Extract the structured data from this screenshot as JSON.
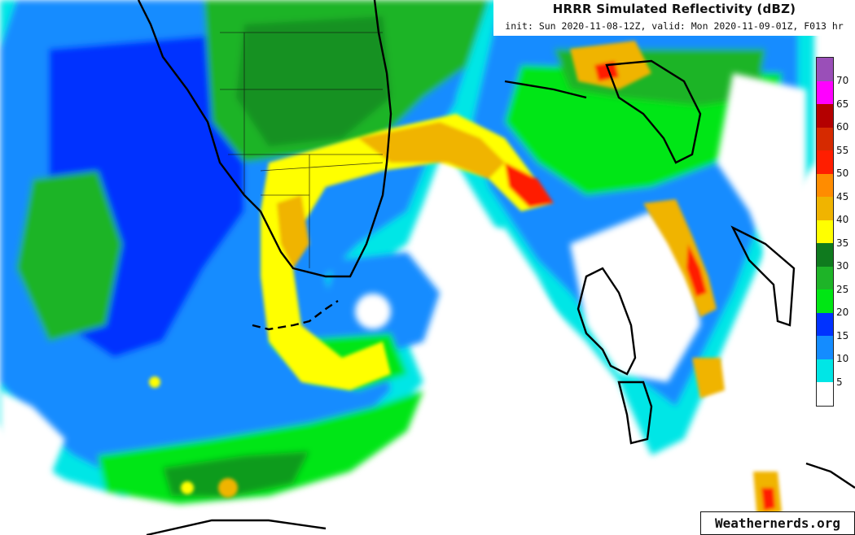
{
  "header": {
    "title": "HRRR Simulated Reflectivity (dBZ)",
    "subtitle": "init: Sun 2020-11-08-12Z, valid: Mon 2020-11-09-01Z, F013 hr"
  },
  "legend": {
    "levels": [
      {
        "label": "70",
        "color": "#9a4fb8"
      },
      {
        "label": "65",
        "color": "#ff00ff"
      },
      {
        "label": "60",
        "color": "#b40000"
      },
      {
        "label": "55",
        "color": "#d62a00"
      },
      {
        "label": "50",
        "color": "#ff1e00"
      },
      {
        "label": "45",
        "color": "#ff8c00"
      },
      {
        "label": "40",
        "color": "#f0b400"
      },
      {
        "label": "35",
        "color": "#ffff00"
      },
      {
        "label": "30",
        "color": "#0f7a1e"
      },
      {
        "label": "25",
        "color": "#1eb428"
      },
      {
        "label": "20",
        "color": "#00e614"
      },
      {
        "label": "15",
        "color": "#0032ff"
      },
      {
        "label": "10",
        "color": "#148cff"
      },
      {
        "label": "5",
        "color": "#00e6e6"
      },
      {
        "label": "",
        "color": "#ffffff"
      }
    ]
  },
  "credit": "Weathernerds.org"
}
